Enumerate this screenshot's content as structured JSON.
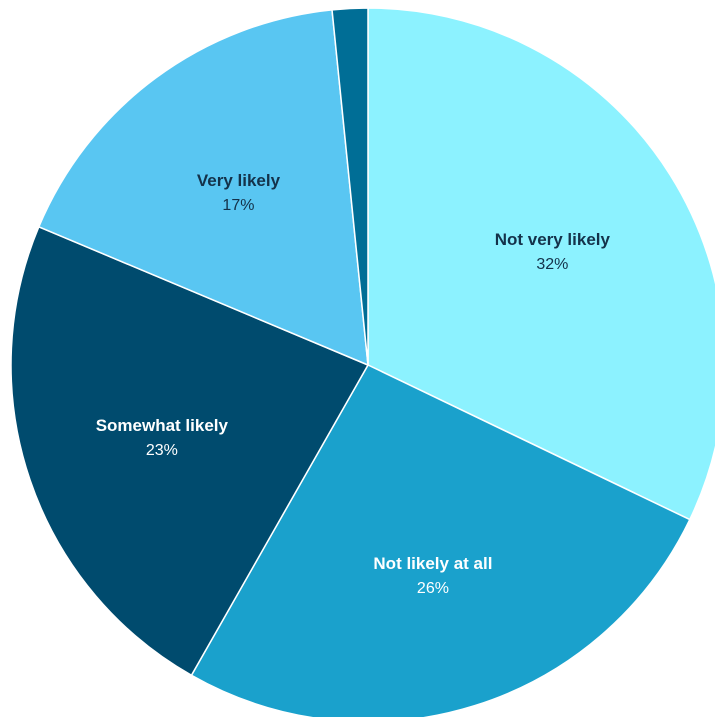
{
  "chart_data": {
    "type": "pie",
    "title": "",
    "slices": [
      {
        "label": "Not very likely",
        "value": 32,
        "value_label": "32%",
        "color": "#8CF2FF",
        "text_color": "#14324A"
      },
      {
        "label": "Not likely at all",
        "value": 26,
        "value_label": "26%",
        "color": "#1AA1CC",
        "text_color": "#FFFFFF"
      },
      {
        "label": "Somewhat likely",
        "value": 23,
        "value_label": "23%",
        "color": "#004B6E",
        "text_color": "#FFFFFF"
      },
      {
        "label": "Very likely",
        "value": 17,
        "value_label": "17%",
        "color": "#59C6F2",
        "text_color": "#14324A"
      },
      {
        "label": "",
        "value": 1.6,
        "value_label": "",
        "color": "#006E96",
        "text_color": "#FFFFFF"
      }
    ],
    "start_at": "12 o'clock",
    "direction": "clockwise",
    "legend": "none"
  }
}
